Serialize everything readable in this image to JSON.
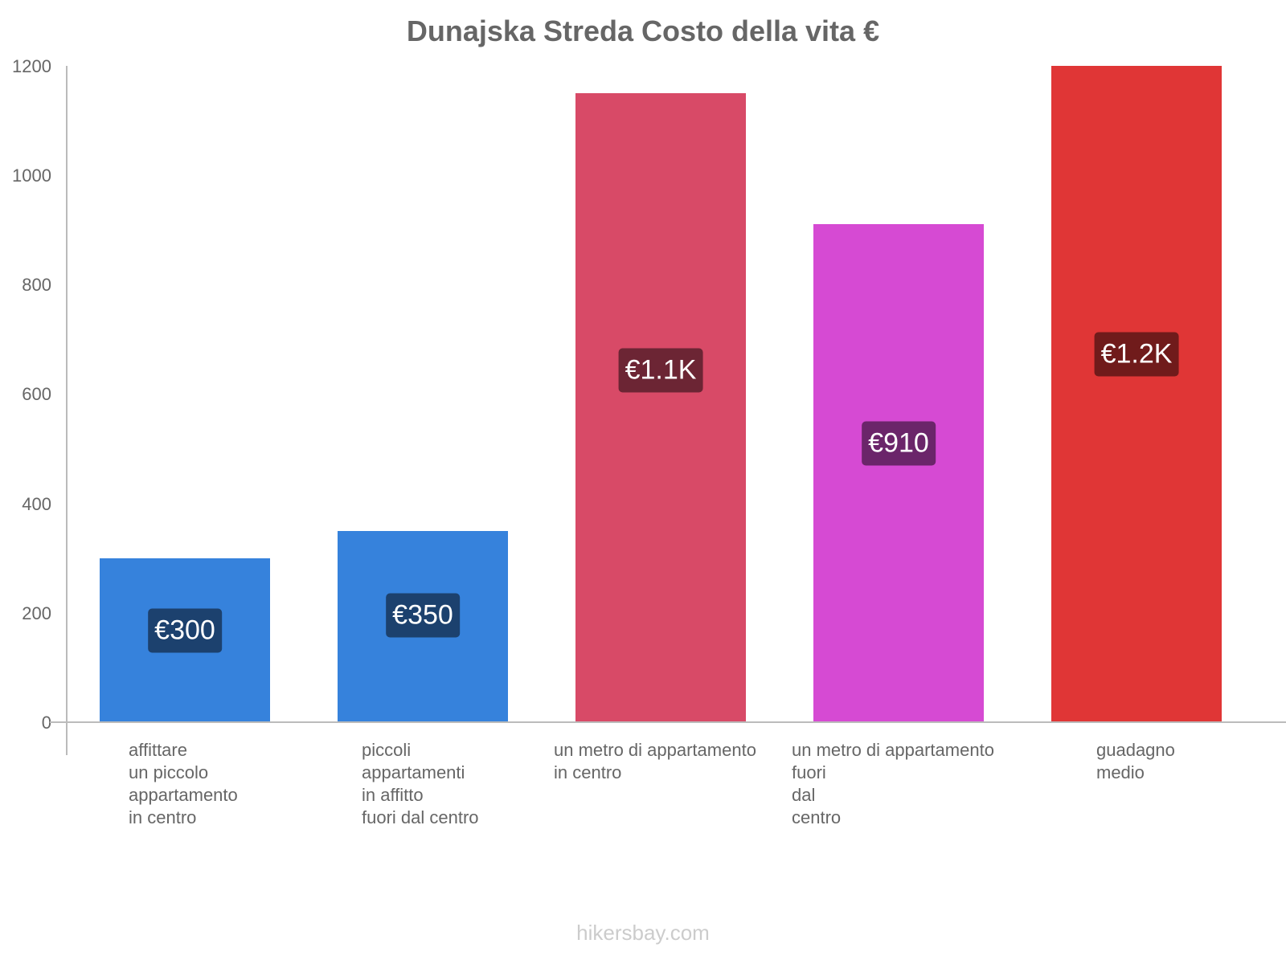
{
  "chart_data": {
    "type": "bar",
    "title": "Dunajska Streda Costo della vita €",
    "xlabel": "",
    "ylabel": "",
    "ylim": [
      0,
      1200
    ],
    "yticks": [
      "0",
      "200",
      "400",
      "600",
      "800",
      "1000",
      "1200"
    ],
    "grid": false,
    "legend": null,
    "categories": [
      "affittare\nun piccolo\nappartamento\nin centro",
      "piccoli\nappartamenti\nin affitto\nfuori dal centro",
      "un metro di appartamento\nin centro",
      "un metro di appartamento\nfuori\ndal\ncentro",
      "guadagno\nmedio"
    ],
    "values": [
      300,
      350,
      1150,
      910,
      1200
    ],
    "value_labels": [
      "€300",
      "€350",
      "€1.1K",
      "€910",
      "€1.2K"
    ],
    "colors": [
      "#3682dc",
      "#3682dc",
      "#d84a67",
      "#d64ad3",
      "#e03636"
    ],
    "label_bg_colors": [
      "#1c416e",
      "#1c416e",
      "#6c2534",
      "#6b256a",
      "#701b1b"
    ]
  },
  "watermark": "hikersbay.com"
}
